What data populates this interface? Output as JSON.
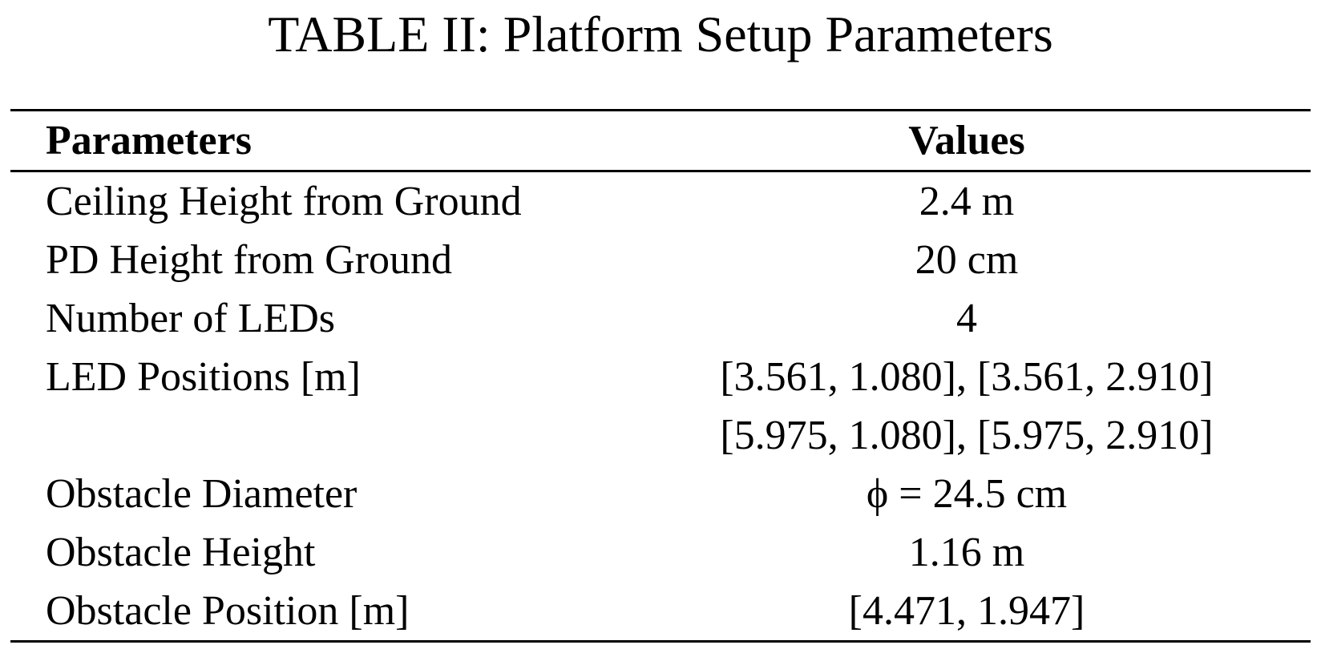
{
  "caption": "TABLE II: Platform Setup Parameters",
  "table": {
    "headers": {
      "param": "Parameters",
      "value": "Values"
    },
    "rows": [
      {
        "param": "Ceiling Height from Ground",
        "value": "2.4 m"
      },
      {
        "param": "PD Height from Ground",
        "value": "20 cm"
      },
      {
        "param": "Number of LEDs",
        "value": "4"
      },
      {
        "param": "LED Positions [m]",
        "value": "[3.561, 1.080], [3.561, 2.910]"
      },
      {
        "param": "",
        "value": "[5.975, 1.080], [5.975, 2.910]"
      },
      {
        "param": "Obstacle Diameter",
        "value": "ϕ = 24.5 cm"
      },
      {
        "param": "Obstacle Height",
        "value": "1.16 m"
      },
      {
        "param": "Obstacle Position [m]",
        "value": "[4.471, 1.947]"
      }
    ]
  }
}
